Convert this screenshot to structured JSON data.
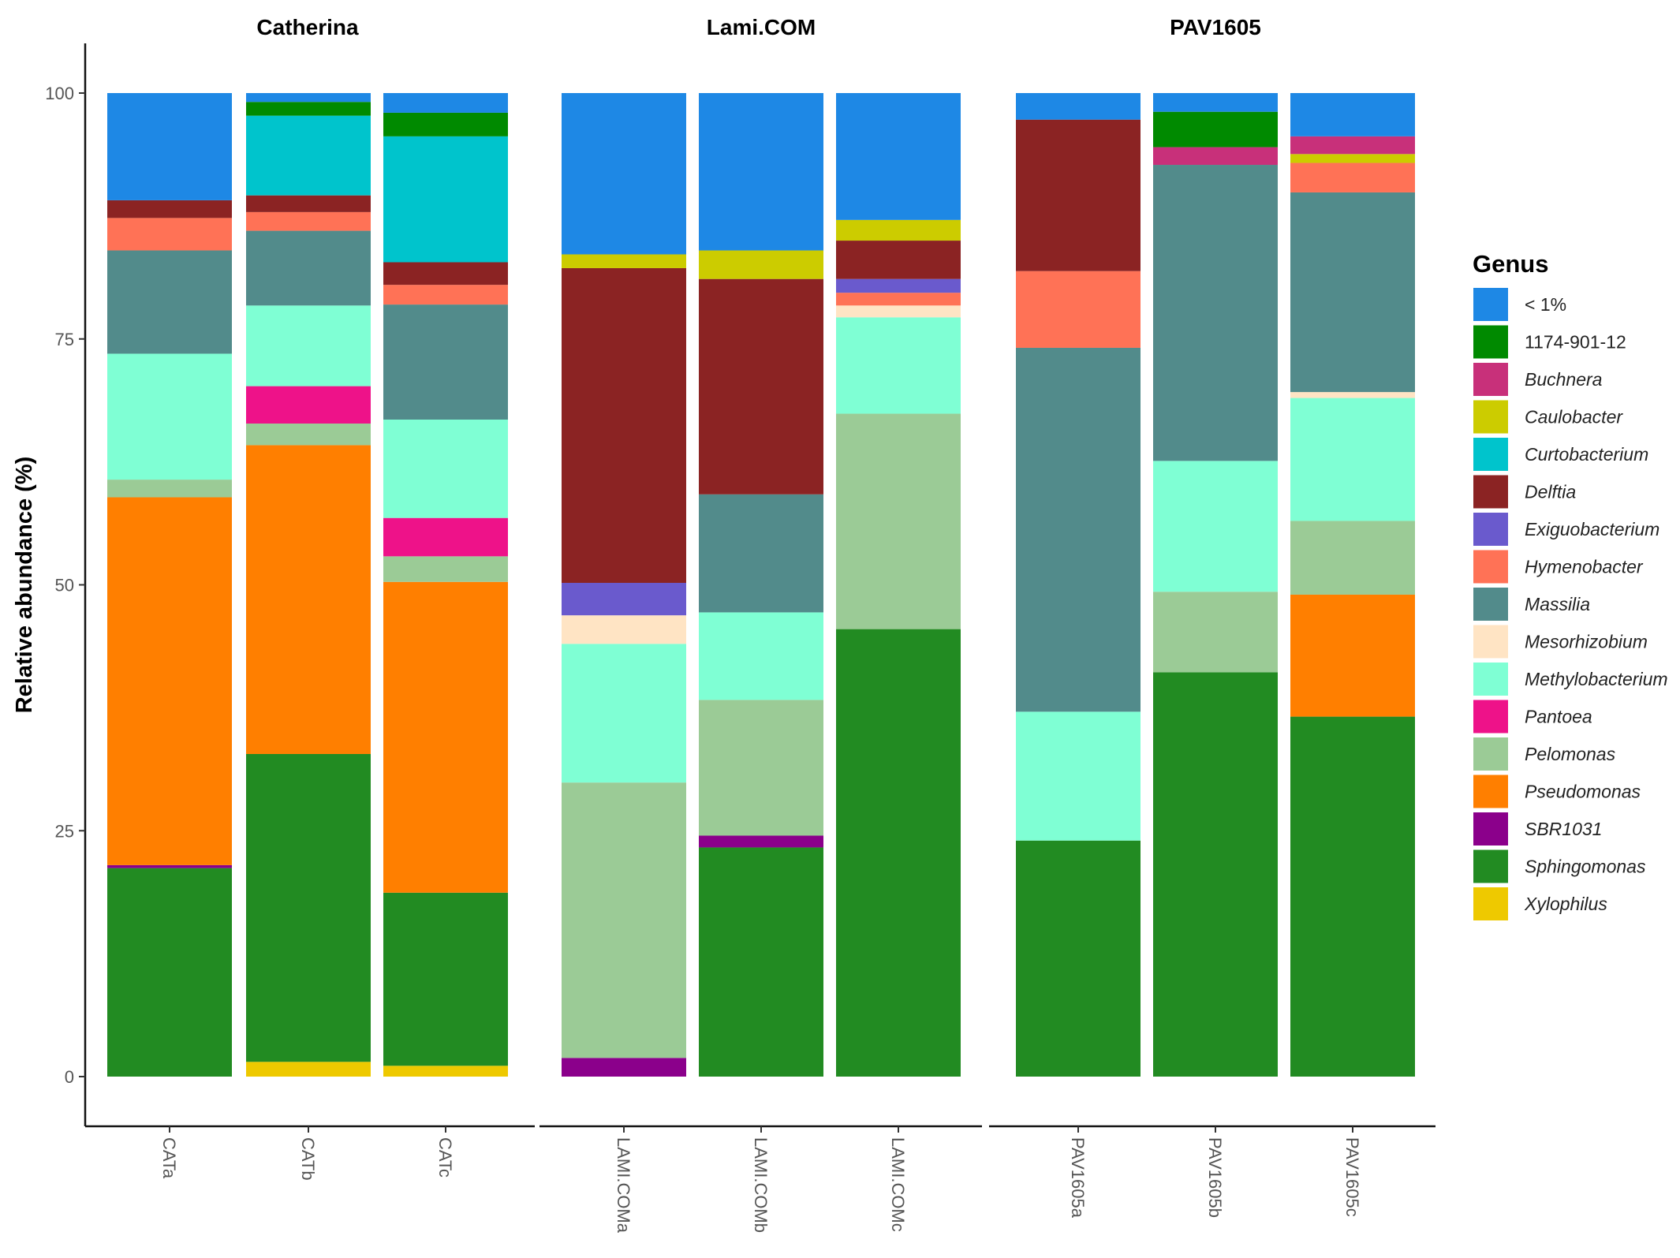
{
  "chart_data": {
    "type": "bar",
    "stacked": true,
    "ylabel": "Relative abundance (%)",
    "xlabel": "",
    "ylim": [
      0,
      100
    ],
    "yticks": [
      "0",
      "25",
      "50",
      "75",
      "100"
    ],
    "legend_title": "Genus",
    "legend_position": "right",
    "genera": [
      {
        "name": "< 1%",
        "color": "#1E88E5",
        "italic": false
      },
      {
        "name": "1174-901-12",
        "color": "#008A00",
        "italic": false
      },
      {
        "name": "Buchnera",
        "color": "#C8307A",
        "italic": true
      },
      {
        "name": "Caulobacter",
        "color": "#CCCC00",
        "italic": true
      },
      {
        "name": "Curtobacterium",
        "color": "#00C4CC",
        "italic": true
      },
      {
        "name": "Delftia",
        "color": "#8B2323",
        "italic": true
      },
      {
        "name": "Exiguobacterium",
        "color": "#6A5ACD",
        "italic": true
      },
      {
        "name": "Hymenobacter",
        "color": "#FF7256",
        "italic": true
      },
      {
        "name": "Massilia",
        "color": "#528B8B",
        "italic": true
      },
      {
        "name": "Mesorhizobium",
        "color": "#FFE4C4",
        "italic": true
      },
      {
        "name": "Methylobacterium",
        "color": "#7FFFD4",
        "italic": true
      },
      {
        "name": "Pantoea",
        "color": "#EE1289",
        "italic": true
      },
      {
        "name": "Pelomonas",
        "color": "#9BCB96",
        "italic": true
      },
      {
        "name": "Pseudomonas",
        "color": "#FF7F00",
        "italic": true
      },
      {
        "name": "SBR1031",
        "color": "#8B008B",
        "italic": true
      },
      {
        "name": "Sphingomonas",
        "color": "#228B22",
        "italic": true
      },
      {
        "name": "Xylophilus",
        "color": "#EEC900",
        "italic": true
      }
    ],
    "facets": [
      {
        "name": "Catherina",
        "samples": [
          {
            "name": "CATa",
            "segments": [
              {
                "genus": "Sphingomonas",
                "value": 21.2
              },
              {
                "genus": "SBR1031",
                "value": 0.3
              },
              {
                "genus": "Pseudomonas",
                "value": 37.4
              },
              {
                "genus": "Pelomonas",
                "value": 1.8
              },
              {
                "genus": "Methylobacterium",
                "value": 12.8
              },
              {
                "genus": "Massilia",
                "value": 10.5
              },
              {
                "genus": "Hymenobacter",
                "value": 3.3
              },
              {
                "genus": "Delftia",
                "value": 1.8
              },
              {
                "genus": "< 1%",
                "value": 10.9
              }
            ]
          },
          {
            "name": "CATb",
            "segments": [
              {
                "genus": "Xylophilus",
                "value": 1.5
              },
              {
                "genus": "Sphingomonas",
                "value": 31.3
              },
              {
                "genus": "Pseudomonas",
                "value": 31.4
              },
              {
                "genus": "Pelomonas",
                "value": 2.2
              },
              {
                "genus": "Pantoea",
                "value": 3.8
              },
              {
                "genus": "Methylobacterium",
                "value": 8.2
              },
              {
                "genus": "Massilia",
                "value": 7.6
              },
              {
                "genus": "Hymenobacter",
                "value": 1.9
              },
              {
                "genus": "Delftia",
                "value": 1.7
              },
              {
                "genus": "Curtobacterium",
                "value": 8.1
              },
              {
                "genus": "1174-901-12",
                "value": 1.4
              },
              {
                "genus": "< 1%",
                "value": 0.9
              }
            ]
          },
          {
            "name": "CATc",
            "segments": [
              {
                "genus": "Xylophilus",
                "value": 1.1
              },
              {
                "genus": "Sphingomonas",
                "value": 17.6
              },
              {
                "genus": "Pseudomonas",
                "value": 31.6
              },
              {
                "genus": "Pelomonas",
                "value": 2.6
              },
              {
                "genus": "Pantoea",
                "value": 3.9
              },
              {
                "genus": "Methylobacterium",
                "value": 10.0
              },
              {
                "genus": "Massilia",
                "value": 11.7
              },
              {
                "genus": "Hymenobacter",
                "value": 2.0
              },
              {
                "genus": "Delftia",
                "value": 2.3
              },
              {
                "genus": "Curtobacterium",
                "value": 12.8
              },
              {
                "genus": "1174-901-12",
                "value": 2.4
              },
              {
                "genus": "< 1%",
                "value": 2.0
              }
            ]
          }
        ]
      },
      {
        "name": "Lami.COM",
        "samples": [
          {
            "name": "LAMI.COMa",
            "segments": [
              {
                "genus": "SBR1031",
                "value": 1.9
              },
              {
                "genus": "Pelomonas",
                "value": 28.0
              },
              {
                "genus": "Methylobacterium",
                "value": 14.1
              },
              {
                "genus": "Mesorhizobium",
                "value": 2.9
              },
              {
                "genus": "Exiguobacterium",
                "value": 3.3
              },
              {
                "genus": "Delftia",
                "value": 32.0
              },
              {
                "genus": "Caulobacter",
                "value": 1.4
              },
              {
                "genus": "< 1%",
                "value": 16.4
              }
            ]
          },
          {
            "name": "LAMI.COMb",
            "segments": [
              {
                "genus": "Sphingomonas",
                "value": 23.3
              },
              {
                "genus": "SBR1031",
                "value": 1.2
              },
              {
                "genus": "Pelomonas",
                "value": 13.8
              },
              {
                "genus": "Methylobacterium",
                "value": 8.9
              },
              {
                "genus": "Massilia",
                "value": 12.0
              },
              {
                "genus": "Delftia",
                "value": 21.9
              },
              {
                "genus": "Caulobacter",
                "value": 2.9
              },
              {
                "genus": "< 1%",
                "value": 16.0
              }
            ]
          },
          {
            "name": "LAMI.COMc",
            "segments": [
              {
                "genus": "Sphingomonas",
                "value": 45.5
              },
              {
                "genus": "Pelomonas",
                "value": 21.9
              },
              {
                "genus": "Methylobacterium",
                "value": 9.8
              },
              {
                "genus": "Mesorhizobium",
                "value": 1.2
              },
              {
                "genus": "Hymenobacter",
                "value": 1.3
              },
              {
                "genus": "Exiguobacterium",
                "value": 1.4
              },
              {
                "genus": "Delftia",
                "value": 3.9
              },
              {
                "genus": "Caulobacter",
                "value": 2.1
              },
              {
                "genus": "< 1%",
                "value": 12.9
              }
            ]
          }
        ]
      },
      {
        "name": "PAV1605",
        "samples": [
          {
            "name": "PAV1605a",
            "segments": [
              {
                "genus": "Sphingomonas",
                "value": 24.0
              },
              {
                "genus": "Methylobacterium",
                "value": 13.1
              },
              {
                "genus": "Massilia",
                "value": 37.0
              },
              {
                "genus": "Hymenobacter",
                "value": 7.8
              },
              {
                "genus": "Delftia",
                "value": 15.4
              },
              {
                "genus": "< 1%",
                "value": 2.7
              }
            ]
          },
          {
            "name": "PAV1605b",
            "segments": [
              {
                "genus": "Sphingomonas",
                "value": 41.1
              },
              {
                "genus": "Pelomonas",
                "value": 8.2
              },
              {
                "genus": "Methylobacterium",
                "value": 13.3
              },
              {
                "genus": "Massilia",
                "value": 30.1
              },
              {
                "genus": "Buchnera",
                "value": 1.8
              },
              {
                "genus": "1174-901-12",
                "value": 3.6
              },
              {
                "genus": "< 1%",
                "value": 1.9
              }
            ]
          },
          {
            "name": "PAV1605c",
            "segments": [
              {
                "genus": "Sphingomonas",
                "value": 36.6
              },
              {
                "genus": "Pseudomonas",
                "value": 12.4
              },
              {
                "genus": "Pelomonas",
                "value": 7.5
              },
              {
                "genus": "Methylobacterium",
                "value": 12.5
              },
              {
                "genus": "Mesorhizobium",
                "value": 0.6
              },
              {
                "genus": "Massilia",
                "value": 20.3
              },
              {
                "genus": "Hymenobacter",
                "value": 3.0
              },
              {
                "genus": "Caulobacter",
                "value": 0.9
              },
              {
                "genus": "Buchnera",
                "value": 1.8
              },
              {
                "genus": "< 1%",
                "value": 4.4
              }
            ]
          }
        ]
      }
    ]
  }
}
